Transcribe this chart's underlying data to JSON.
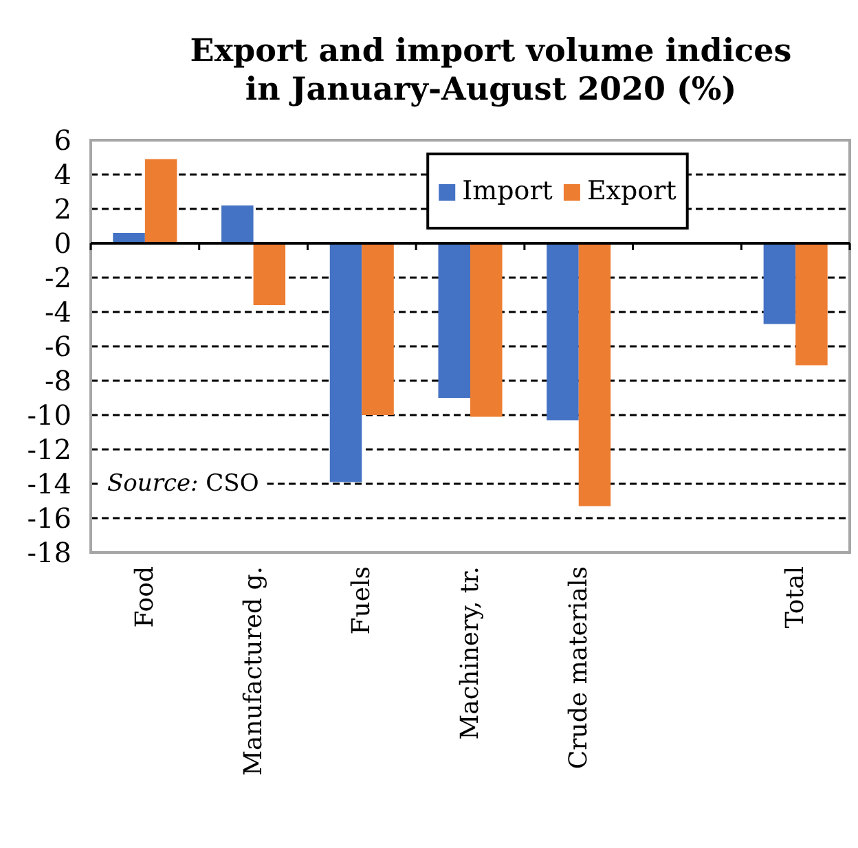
{
  "chart_data": {
    "type": "bar",
    "title": "Export and import volume indices in January-August 2020 (%)",
    "categories": [
      "Food",
      "Manufactured g.",
      "Fuels",
      "Machinery, tr.",
      "Crude materials",
      null,
      "Total"
    ],
    "series": [
      {
        "name": "Import",
        "color": "#4472c4",
        "values": [
          0.6,
          2.2,
          -13.9,
          -9.0,
          -10.3,
          null,
          -4.7
        ]
      },
      {
        "name": "Export",
        "color": "#ed7d31",
        "values": [
          4.9,
          -3.6,
          -10.0,
          -10.1,
          -15.3,
          null,
          -7.1
        ]
      }
    ],
    "ylim": [
      -18,
      6
    ],
    "yticks": [
      -18,
      -16,
      -14,
      -12,
      -10,
      -8,
      -6,
      -4,
      -2,
      0,
      2,
      4,
      6
    ],
    "grid": "y",
    "legend": "top",
    "annotations": [
      "Source: CSO"
    ]
  }
}
